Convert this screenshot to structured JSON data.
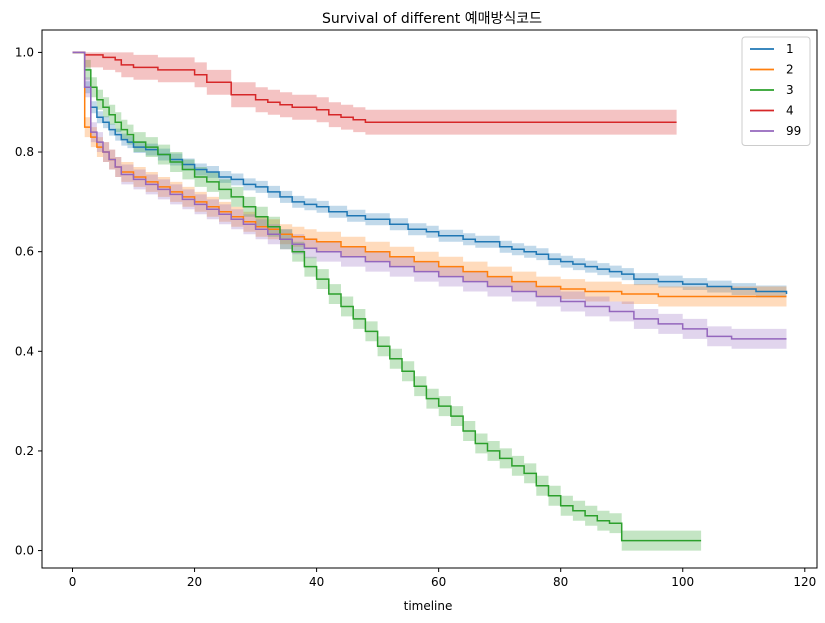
{
  "chart_data": {
    "type": "line",
    "title": "Survival of different 예매방식코드",
    "xlabel": "timeline",
    "ylabel": "",
    "xlim": [
      -5,
      122
    ],
    "ylim": [
      -0.035,
      1.045
    ],
    "xticks": [
      "0",
      "20",
      "40",
      "60",
      "80",
      "100",
      "120"
    ],
    "yticks": [
      "0.0",
      "0.2",
      "0.4",
      "0.6",
      "0.8",
      "1.0"
    ],
    "grid": false,
    "legend_position": "top-right",
    "step": true,
    "confidence_bands": true,
    "series": [
      {
        "name": "1",
        "color": "#1f77b4",
        "x": [
          0,
          2,
          3,
          4,
          5,
          6,
          7,
          8,
          9,
          10,
          12,
          14,
          16,
          18,
          20,
          22,
          24,
          26,
          28,
          30,
          32,
          34,
          36,
          38,
          40,
          42,
          45,
          48,
          52,
          55,
          58,
          60,
          64,
          66,
          70,
          72,
          74,
          76,
          78,
          80,
          82,
          84,
          86,
          88,
          90,
          92,
          96,
          100,
          104,
          108,
          112,
          117
        ],
        "y": [
          1.0,
          0.93,
          0.89,
          0.87,
          0.86,
          0.845,
          0.835,
          0.825,
          0.82,
          0.81,
          0.805,
          0.795,
          0.785,
          0.775,
          0.765,
          0.76,
          0.75,
          0.745,
          0.735,
          0.73,
          0.72,
          0.71,
          0.7,
          0.695,
          0.69,
          0.68,
          0.672,
          0.665,
          0.655,
          0.645,
          0.64,
          0.632,
          0.625,
          0.62,
          0.61,
          0.605,
          0.6,
          0.595,
          0.585,
          0.58,
          0.575,
          0.57,
          0.565,
          0.56,
          0.555,
          0.545,
          0.54,
          0.535,
          0.53,
          0.525,
          0.52,
          0.515
        ],
        "ci": 0.012
      },
      {
        "name": "2",
        "color": "#ff7f0e",
        "x": [
          0,
          2,
          3,
          4,
          5,
          6,
          7,
          8,
          10,
          12,
          14,
          16,
          18,
          20,
          22,
          24,
          26,
          28,
          30,
          32,
          34,
          36,
          38,
          40,
          44,
          48,
          52,
          56,
          60,
          64,
          68,
          72,
          76,
          80,
          84,
          90,
          96,
          100,
          110,
          117
        ],
        "y": [
          1.0,
          0.85,
          0.83,
          0.81,
          0.8,
          0.785,
          0.77,
          0.76,
          0.75,
          0.74,
          0.73,
          0.72,
          0.71,
          0.7,
          0.69,
          0.68,
          0.67,
          0.66,
          0.65,
          0.645,
          0.635,
          0.63,
          0.625,
          0.62,
          0.61,
          0.6,
          0.59,
          0.58,
          0.57,
          0.56,
          0.55,
          0.54,
          0.53,
          0.525,
          0.52,
          0.515,
          0.51,
          0.51,
          0.51,
          0.51
        ],
        "ci": 0.02
      },
      {
        "name": "3",
        "color": "#2ca02c",
        "x": [
          0,
          2,
          3,
          4,
          5,
          6,
          7,
          8,
          9,
          10,
          12,
          14,
          16,
          18,
          20,
          22,
          24,
          26,
          28,
          30,
          32,
          34,
          36,
          38,
          40,
          42,
          44,
          46,
          48,
          50,
          52,
          54,
          56,
          58,
          60,
          62,
          64,
          66,
          68,
          70,
          72,
          74,
          76,
          78,
          80,
          82,
          84,
          86,
          88,
          90,
          103
        ],
        "y": [
          1.0,
          0.965,
          0.93,
          0.905,
          0.89,
          0.875,
          0.86,
          0.845,
          0.835,
          0.82,
          0.81,
          0.795,
          0.78,
          0.765,
          0.75,
          0.74,
          0.725,
          0.71,
          0.69,
          0.67,
          0.65,
          0.625,
          0.6,
          0.57,
          0.545,
          0.515,
          0.49,
          0.465,
          0.44,
          0.41,
          0.385,
          0.36,
          0.33,
          0.305,
          0.29,
          0.27,
          0.24,
          0.215,
          0.2,
          0.185,
          0.17,
          0.155,
          0.13,
          0.11,
          0.09,
          0.08,
          0.07,
          0.06,
          0.055,
          0.02,
          0.02
        ],
        "ci": 0.02
      },
      {
        "name": "4",
        "color": "#d62728",
        "x": [
          0,
          2,
          5,
          7,
          8,
          10,
          14,
          20,
          22,
          26,
          30,
          32,
          34,
          36,
          40,
          42,
          44,
          46,
          48,
          60,
          80,
          99
        ],
        "y": [
          1.0,
          0.995,
          0.99,
          0.985,
          0.975,
          0.97,
          0.965,
          0.955,
          0.94,
          0.915,
          0.905,
          0.9,
          0.895,
          0.89,
          0.885,
          0.875,
          0.87,
          0.865,
          0.86,
          0.86,
          0.86,
          0.86
        ],
        "ci": 0.025
      },
      {
        "name": "99",
        "color": "#9467bd",
        "x": [
          0,
          2,
          3,
          4,
          5,
          6,
          7,
          8,
          10,
          12,
          14,
          16,
          18,
          20,
          22,
          24,
          26,
          28,
          30,
          32,
          34,
          36,
          38,
          40,
          44,
          48,
          52,
          56,
          60,
          64,
          68,
          72,
          76,
          80,
          84,
          88,
          92,
          96,
          100,
          104,
          108,
          117
        ],
        "y": [
          1.0,
          0.93,
          0.84,
          0.82,
          0.8,
          0.785,
          0.77,
          0.755,
          0.745,
          0.735,
          0.725,
          0.715,
          0.705,
          0.695,
          0.685,
          0.675,
          0.665,
          0.655,
          0.645,
          0.635,
          0.625,
          0.615,
          0.607,
          0.6,
          0.59,
          0.58,
          0.57,
          0.56,
          0.55,
          0.54,
          0.53,
          0.52,
          0.51,
          0.5,
          0.49,
          0.48,
          0.465,
          0.455,
          0.445,
          0.43,
          0.425,
          0.425
        ],
        "ci": 0.02
      }
    ]
  }
}
